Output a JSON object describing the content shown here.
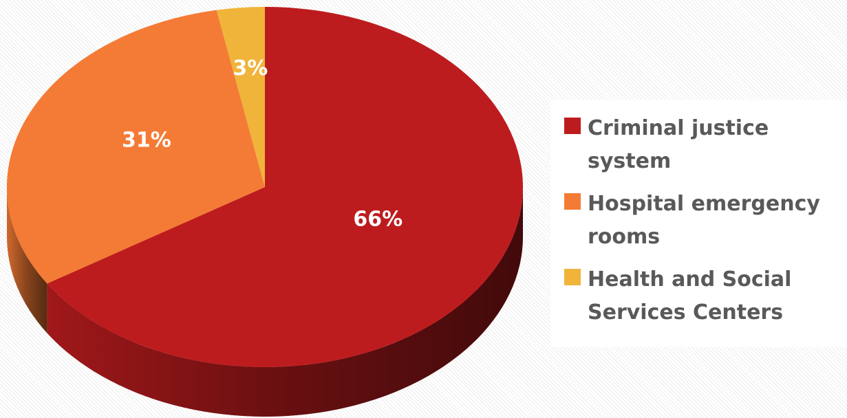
{
  "chart_data": {
    "type": "pie",
    "categories": [
      "Criminal justice system",
      "Hospital emergency rooms",
      "Health and Social Services Centers"
    ],
    "values": [
      66,
      31,
      3
    ],
    "value_labels": [
      "66%",
      "31%",
      "3%"
    ],
    "colors": [
      "#bd1c1e",
      "#f47b35",
      "#f0b43a"
    ],
    "legend": "right"
  }
}
